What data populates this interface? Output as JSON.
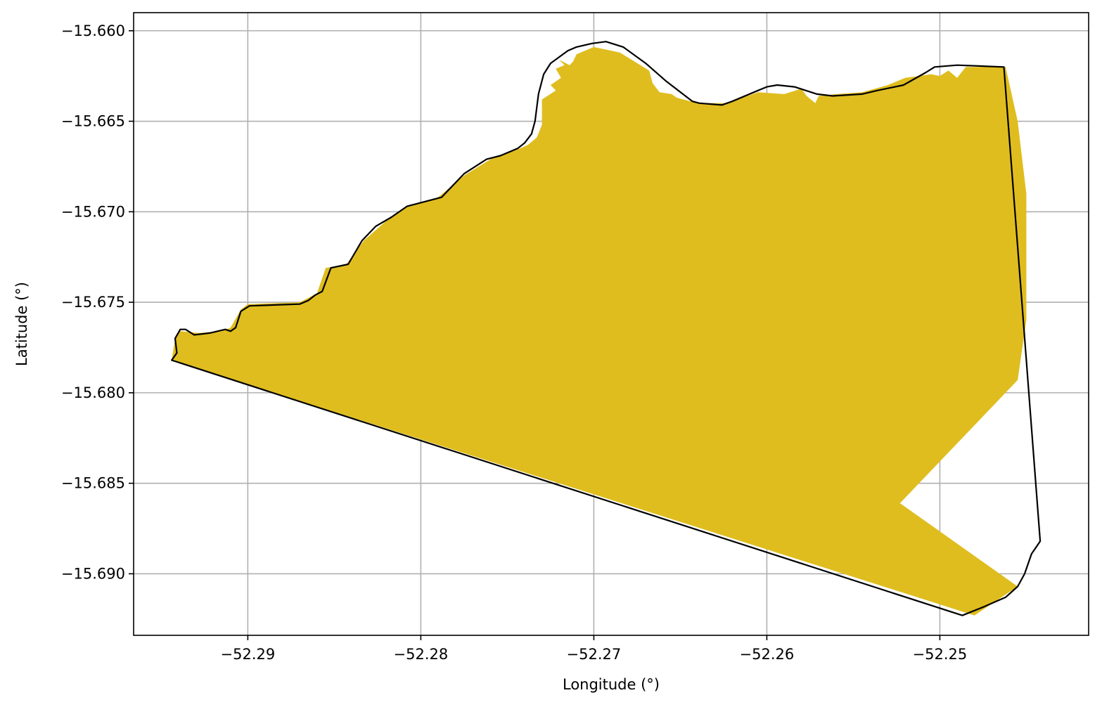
{
  "chart_data": {
    "type": "map",
    "xlabel": "Longitude (°)",
    "ylabel": "Latitude (°)",
    "xlim": [
      -52.2966,
      -52.2414
    ],
    "ylim": [
      -15.6934,
      -15.659
    ],
    "xticks": [
      -52.29,
      -52.28,
      -52.27,
      -52.26,
      -52.25
    ],
    "xtick_labels": [
      "−52.29",
      "−52.28",
      "−52.27",
      "−52.26",
      "−52.25"
    ],
    "yticks": [
      -15.66,
      -15.665,
      -15.67,
      -15.675,
      -15.68,
      -15.685,
      -15.69
    ],
    "ytick_labels": [
      "−15.660",
      "−15.665",
      "−15.670",
      "−15.675",
      "−15.680",
      "−15.685",
      "−15.690"
    ],
    "grid": true,
    "colors": {
      "fill": "#dfbd1f",
      "outline": "#000000",
      "grid": "#b0b0b0"
    },
    "filled_area": [
      [
        -52.2944,
        -15.6782
      ],
      [
        -52.2942,
        -15.677
      ],
      [
        -52.2939,
        -15.6766
      ],
      [
        -52.2928,
        -15.6767
      ],
      [
        -52.2915,
        -15.6766
      ],
      [
        -52.291,
        -15.6764
      ],
      [
        -52.2904,
        -15.6754
      ],
      [
        -52.29,
        -15.6751
      ],
      [
        -52.287,
        -15.675
      ],
      [
        -52.286,
        -15.6745
      ],
      [
        -52.2855,
        -15.6731
      ],
      [
        -52.2843,
        -15.6729
      ],
      [
        -52.2833,
        -15.6716
      ],
      [
        -52.282,
        -15.6705
      ],
      [
        -52.281,
        -15.6698
      ],
      [
        -52.279,
        -15.6692
      ],
      [
        -52.2775,
        -15.668
      ],
      [
        -52.2758,
        -15.667
      ],
      [
        -52.2745,
        -15.6666
      ],
      [
        -52.2738,
        -15.6663
      ],
      [
        -52.2733,
        -15.6659
      ],
      [
        -52.273,
        -15.6652
      ],
      [
        -52.273,
        -15.6638
      ],
      [
        -52.2722,
        -15.6633
      ],
      [
        -52.2725,
        -15.663
      ],
      [
        -52.2719,
        -15.6626
      ],
      [
        -52.2722,
        -15.6621
      ],
      [
        -52.2717,
        -15.6619
      ],
      [
        -52.272,
        -15.6616
      ],
      [
        -52.2714,
        -15.6619
      ],
      [
        -52.2712,
        -15.6617
      ],
      [
        -52.271,
        -15.6613
      ],
      [
        -52.27,
        -15.6609
      ],
      [
        -52.2685,
        -15.6612
      ],
      [
        -52.2668,
        -15.6622
      ],
      [
        -52.2666,
        -15.6629
      ],
      [
        -52.2662,
        -15.6634
      ],
      [
        -52.2655,
        -15.6635
      ],
      [
        -52.2652,
        -15.6637
      ],
      [
        -52.264,
        -15.664
      ],
      [
        -52.2623,
        -15.664
      ],
      [
        -52.2605,
        -15.6634
      ],
      [
        -52.259,
        -15.6635
      ],
      [
        -52.258,
        -15.6632
      ],
      [
        -52.2577,
        -15.6636
      ],
      [
        -52.2572,
        -15.664
      ],
      [
        -52.257,
        -15.6636
      ],
      [
        -52.256,
        -15.6635
      ],
      [
        -52.2545,
        -15.6634
      ],
      [
        -52.253,
        -15.663
      ],
      [
        -52.252,
        -15.6626
      ],
      [
        -52.2505,
        -15.6624
      ],
      [
        -52.25,
        -15.6625
      ],
      [
        -52.2495,
        -15.6622
      ],
      [
        -52.249,
        -15.6626
      ],
      [
        -52.2485,
        -15.662
      ],
      [
        -52.2462,
        -15.662
      ],
      [
        -52.2455,
        -15.665
      ],
      [
        -52.245,
        -15.669
      ],
      [
        -52.245,
        -15.676
      ],
      [
        -52.2455,
        -15.6793
      ],
      [
        -52.2523,
        -15.6861
      ],
      [
        -52.2455,
        -15.6907
      ],
      [
        -52.248,
        -15.6923
      ],
      [
        -52.2944,
        -15.6782
      ]
    ],
    "outline": [
      [
        -52.2944,
        -15.6782
      ],
      [
        -52.2941,
        -15.6778
      ],
      [
        -52.2942,
        -15.677
      ],
      [
        -52.2939,
        -15.6765
      ],
      [
        -52.2936,
        -15.6765
      ],
      [
        -52.2931,
        -15.6768
      ],
      [
        -52.2922,
        -15.6767
      ],
      [
        -52.2913,
        -15.6765
      ],
      [
        -52.291,
        -15.6766
      ],
      [
        -52.2907,
        -15.6764
      ],
      [
        -52.2904,
        -15.6755
      ],
      [
        -52.2899,
        -15.6752
      ],
      [
        -52.287,
        -15.6751
      ],
      [
        -52.2865,
        -15.6749
      ],
      [
        -52.2861,
        -15.6746
      ],
      [
        -52.2857,
        -15.6744
      ],
      [
        -52.2852,
        -15.6731
      ],
      [
        -52.2842,
        -15.6729
      ],
      [
        -52.2834,
        -15.6716
      ],
      [
        -52.2826,
        -15.6708
      ],
      [
        -52.2817,
        -15.6703
      ],
      [
        -52.2808,
        -15.6697
      ],
      [
        -52.2788,
        -15.6692
      ],
      [
        -52.2775,
        -15.6679
      ],
      [
        -52.2762,
        -15.6671
      ],
      [
        -52.2754,
        -15.6669
      ],
      [
        -52.2744,
        -15.6665
      ],
      [
        -52.274,
        -15.6662
      ],
      [
        -52.2736,
        -15.6657
      ],
      [
        -52.2734,
        -15.665
      ],
      [
        -52.2732,
        -15.6635
      ],
      [
        -52.2729,
        -15.6624
      ],
      [
        -52.2725,
        -15.6618
      ],
      [
        -52.2715,
        -15.6611
      ],
      [
        -52.271,
        -15.6609
      ],
      [
        -52.2701,
        -15.6607
      ],
      [
        -52.2693,
        -15.6606
      ],
      [
        -52.2683,
        -15.6609
      ],
      [
        -52.267,
        -15.6618
      ],
      [
        -52.2658,
        -15.6628
      ],
      [
        -52.2643,
        -15.6639
      ],
      [
        -52.2639,
        -15.664
      ],
      [
        -52.2626,
        -15.6641
      ],
      [
        -52.262,
        -15.6639
      ],
      [
        -52.2605,
        -15.6633
      ],
      [
        -52.26,
        -15.6631
      ],
      [
        -52.2594,
        -15.663
      ],
      [
        -52.2584,
        -15.6631
      ],
      [
        -52.2571,
        -15.6635
      ],
      [
        -52.2562,
        -15.6636
      ],
      [
        -52.2545,
        -15.6635
      ],
      [
        -52.2536,
        -15.6633
      ],
      [
        -52.2521,
        -15.663
      ],
      [
        -52.2508,
        -15.6623
      ],
      [
        -52.2503,
        -15.662
      ],
      [
        -52.249,
        -15.6619
      ],
      [
        -52.2463,
        -15.662
      ],
      [
        -52.2442,
        -15.6882
      ],
      [
        -52.2447,
        -15.6889
      ],
      [
        -52.2451,
        -15.69
      ],
      [
        -52.2455,
        -15.6907
      ],
      [
        -52.2462,
        -15.6913
      ],
      [
        -52.2474,
        -15.6918
      ],
      [
        -52.2487,
        -15.6923
      ],
      [
        -52.2944,
        -15.6782
      ]
    ]
  }
}
